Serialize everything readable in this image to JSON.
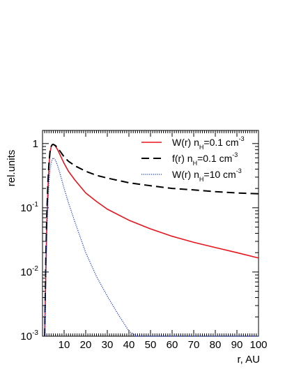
{
  "chart_data": {
    "type": "line",
    "title": "",
    "xlabel": "r, AU",
    "ylabel": "rel.units",
    "xlim": [
      0,
      100
    ],
    "ylim": [
      0.001,
      1.6
    ],
    "yscale": "log",
    "grid": false,
    "legend_position": "top-right",
    "x_ticks": [
      10,
      20,
      30,
      40,
      50,
      60,
      70,
      80,
      90,
      100
    ],
    "y_ticks": [
      {
        "value": 1,
        "base": "1",
        "exp": ""
      },
      {
        "value": 0.1,
        "base": "10",
        "exp": "-1"
      },
      {
        "value": 0.01,
        "base": "10",
        "exp": "-2"
      },
      {
        "value": 0.001,
        "base": "10",
        "exp": "-3"
      }
    ],
    "series": [
      {
        "name": "W(r) n_H=0.1 cm^-3",
        "legend": {
          "pre": "W(r) n",
          "sub": "H",
          "mid": "=0.1 cm",
          "sup": "-3"
        },
        "color": "#e8141d",
        "style": "solid",
        "x": [
          1,
          1.5,
          2,
          2.5,
          3,
          3.5,
          4,
          4.5,
          5,
          5.5,
          6,
          7,
          8,
          10,
          12,
          15,
          20,
          25,
          30,
          40,
          50,
          60,
          70,
          80,
          90,
          100
        ],
        "y": [
          0.001,
          0.01,
          0.06,
          0.2,
          0.45,
          0.72,
          0.89,
          0.96,
          0.97,
          0.95,
          0.91,
          0.8,
          0.68,
          0.49,
          0.37,
          0.27,
          0.17,
          0.125,
          0.095,
          0.064,
          0.047,
          0.036,
          0.029,
          0.024,
          0.02,
          0.0165
        ]
      },
      {
        "name": "f(r) n_H=0.1 cm^-3",
        "legend": {
          "pre": "f(r) n",
          "sub": "H",
          "mid": "=0.1 cm",
          "sup": "-3"
        },
        "color": "#000000",
        "style": "dashed",
        "x": [
          1,
          1.5,
          2,
          2.5,
          3,
          3.5,
          4,
          4.5,
          5,
          6,
          7,
          8,
          10,
          12,
          15,
          20,
          25,
          30,
          40,
          50,
          60,
          70,
          80,
          90,
          100
        ],
        "y": [
          0.001,
          0.015,
          0.08,
          0.25,
          0.5,
          0.75,
          0.9,
          0.96,
          0.97,
          0.93,
          0.85,
          0.77,
          0.62,
          0.53,
          0.45,
          0.37,
          0.32,
          0.29,
          0.245,
          0.22,
          0.2,
          0.19,
          0.178,
          0.17,
          0.165
        ]
      },
      {
        "name": "W(r) n_H=10 cm^-3",
        "legend": {
          "pre": "W(r) n",
          "sub": "H",
          "mid": "=10 cm",
          "sup": "-3"
        },
        "color": "#1f3bd8",
        "style": "dotted",
        "x": [
          1,
          1.5,
          2,
          2.5,
          3,
          3.5,
          4,
          4.5,
          5,
          6,
          7,
          8,
          10,
          12,
          15,
          20,
          25,
          30,
          35,
          40,
          43.5,
          50,
          60,
          70,
          80,
          90,
          100
        ],
        "y": [
          0.001,
          0.008,
          0.04,
          0.12,
          0.25,
          0.39,
          0.5,
          0.57,
          0.6,
          0.55,
          0.45,
          0.35,
          0.2,
          0.12,
          0.06,
          0.02,
          0.0085,
          0.0042,
          0.0022,
          0.0012,
          0.001,
          0.001,
          0.001,
          0.001,
          0.001,
          0.001,
          0.001
        ]
      }
    ]
  }
}
